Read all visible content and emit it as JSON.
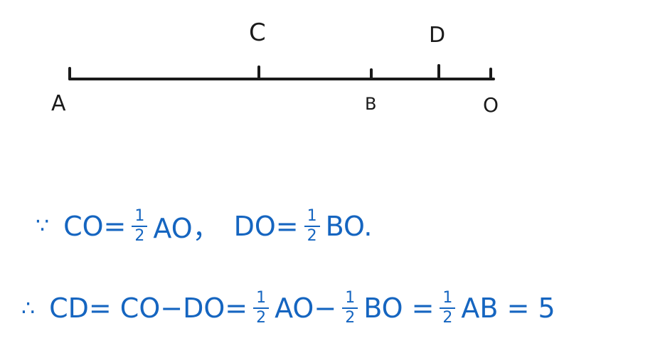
{
  "points": {
    "A": "A",
    "B": "B",
    "C": "C",
    "D": "D",
    "O": "O"
  },
  "line1": {
    "because": "∵",
    "p1": "CO=",
    "p2": "AO，",
    "p3": "DO=",
    "p4": "BO.",
    "frac_num": "1",
    "frac_den": "2"
  },
  "line2": {
    "therefore": "∴",
    "p1": "CD= CO−DO=",
    "p2": "AO−",
    "p3": "BO =",
    "p4": "AB = 5",
    "frac_num": "1",
    "frac_den": "2"
  },
  "colors": {
    "ink": "#1a1a1a",
    "math": "#1565c0"
  }
}
